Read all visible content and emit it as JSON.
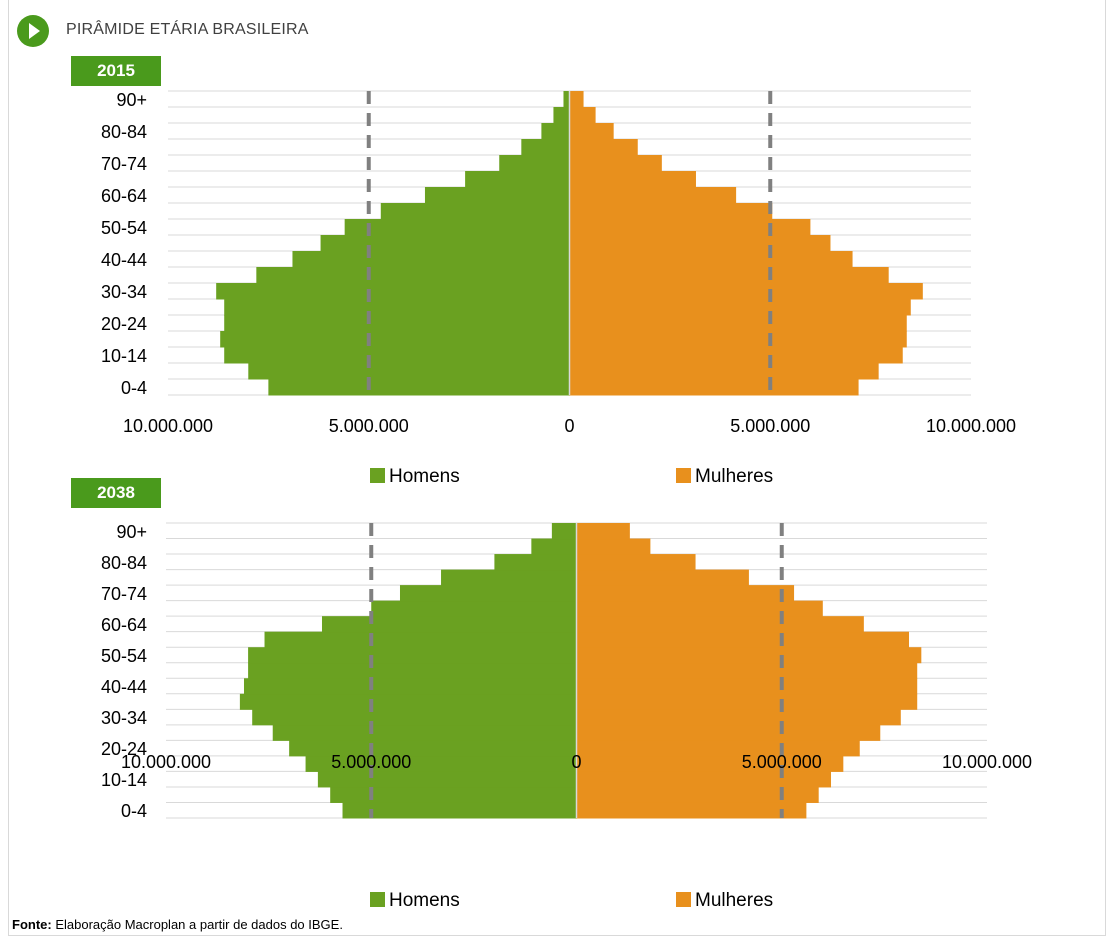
{
  "header": {
    "title": "PIRÂMIDE ETÁRIA BRASILEIRA",
    "icon": "play-icon",
    "accent_color": "#4a9a1c"
  },
  "source": {
    "label": "Fonte:",
    "text": " Elaboração Macroplan a partir de dados do IBGE."
  },
  "chart_data": [
    {
      "type": "bar",
      "subtype": "population-pyramid",
      "year_label": "2015",
      "categories": [
        "0-4",
        "5-9",
        "10-14",
        "15-19",
        "20-24",
        "25-29",
        "30-34",
        "35-39",
        "40-44",
        "45-49",
        "50-54",
        "55-59",
        "60-64",
        "65-69",
        "70-74",
        "75-79",
        "80-84",
        "85-89",
        "90+"
      ],
      "category_labels_shown": [
        "0-4",
        "10-14",
        "20-24",
        "30-34",
        "40-44",
        "50-54",
        "60-64",
        "70-74",
        "80-84",
        "90+"
      ],
      "x_ticks": [
        "10.000.000",
        "5.000.000",
        "0",
        "5.000.000",
        "10.000.000"
      ],
      "xlim": [
        -10000000,
        10000000
      ],
      "reference_lines": [
        -5000000,
        5000000
      ],
      "series": [
        {
          "name": "Homens",
          "color": "#6aa121",
          "values": [
            7500000,
            8000000,
            8600000,
            8700000,
            8600000,
            8600000,
            8800000,
            7800000,
            6900000,
            6200000,
            5600000,
            4700000,
            3600000,
            2600000,
            1750000,
            1200000,
            700000,
            400000,
            150000
          ]
        },
        {
          "name": "Mulheres",
          "color": "#e8901d",
          "values": [
            7200000,
            7700000,
            8300000,
            8400000,
            8400000,
            8500000,
            8800000,
            7950000,
            7050000,
            6500000,
            6000000,
            5050000,
            4150000,
            3150000,
            2300000,
            1700000,
            1100000,
            650000,
            350000
          ]
        }
      ],
      "legend_placement": "bottom",
      "grid": true
    },
    {
      "type": "bar",
      "subtype": "population-pyramid",
      "year_label": "2038",
      "categories": [
        "0-4",
        "5-9",
        "10-14",
        "15-19",
        "20-24",
        "25-29",
        "30-34",
        "35-39",
        "40-44",
        "45-49",
        "50-54",
        "55-59",
        "60-64",
        "65-69",
        "70-74",
        "75-79",
        "80-84",
        "85-89",
        "90+"
      ],
      "category_labels_shown": [
        "0-4",
        "10-14",
        "20-24",
        "30-34",
        "40-44",
        "50-54",
        "60-64",
        "70-74",
        "80-84",
        "90+"
      ],
      "x_ticks": [
        "10.000.000",
        "5.000.000",
        "0",
        "5.000.000",
        "10.000.000"
      ],
      "xlim": [
        -10000000,
        10000000
      ],
      "reference_lines": [
        -5000000,
        5000000
      ],
      "series": [
        {
          "name": "Homens",
          "color": "#6aa121",
          "values": [
            5700000,
            6000000,
            6300000,
            6600000,
            7000000,
            7400000,
            7900000,
            8200000,
            8100000,
            8000000,
            8000000,
            7600000,
            6200000,
            5000000,
            4300000,
            3300000,
            2000000,
            1100000,
            600000
          ]
        },
        {
          "name": "Mulheres",
          "color": "#e8901d",
          "values": [
            5600000,
            5900000,
            6200000,
            6500000,
            6900000,
            7400000,
            7900000,
            8300000,
            8300000,
            8300000,
            8400000,
            8100000,
            7000000,
            6000000,
            5300000,
            4200000,
            2900000,
            1800000,
            1300000
          ]
        }
      ],
      "legend_placement": "bottom",
      "grid": true
    }
  ]
}
